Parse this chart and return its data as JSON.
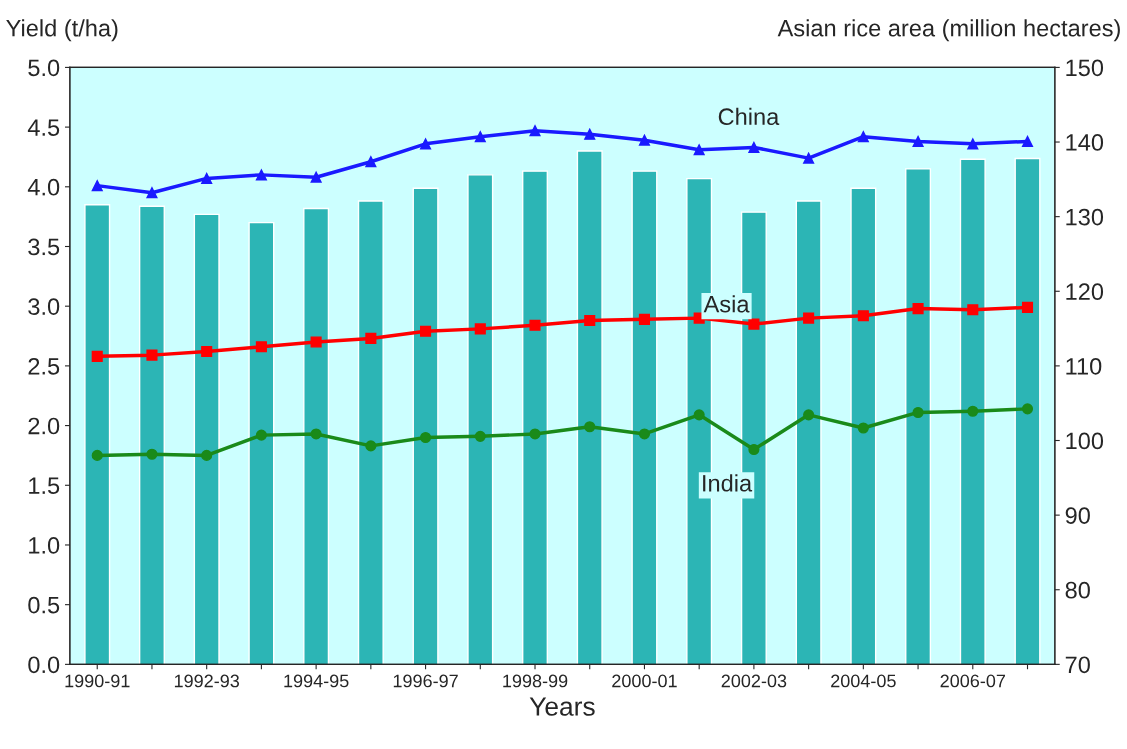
{
  "chart_data": {
    "type": "line",
    "xlabel": "Years",
    "ylabel": "Yield (t/ha)",
    "y2label": "Asian rice area (million hectares)",
    "categories": [
      "1990-91",
      null,
      "1992-93",
      null,
      "1994-95",
      null,
      "1996-97",
      null,
      "1998-99",
      null,
      "2000-01",
      null,
      "2002-03",
      null,
      "2004-05",
      null,
      "2006-07",
      null
    ],
    "series": [
      {
        "type": "bar",
        "axis": "y2",
        "color": "#2cb5b5",
        "values": [
          131.6,
          131.4,
          130.3,
          129.2,
          131.1,
          132.1,
          133.8,
          135.6,
          136.1,
          138.8,
          136.1,
          135.1,
          130.6,
          132.1,
          133.8,
          136.4,
          137.7,
          137.8
        ]
      },
      {
        "name": "China",
        "color": "#1a1aff",
        "marker": "triangle",
        "values": [
          4.01,
          3.95,
          4.07,
          4.1,
          4.08,
          4.21,
          4.36,
          4.42,
          4.47,
          4.44,
          4.39,
          4.31,
          4.33,
          4.24,
          4.42,
          4.38,
          4.36,
          4.38
        ]
      },
      {
        "name": "Asia",
        "color": "#ff0000",
        "marker": "square",
        "values": [
          2.58,
          2.59,
          2.62,
          2.66,
          2.7,
          2.73,
          2.79,
          2.81,
          2.84,
          2.88,
          2.89,
          2.9,
          2.85,
          2.9,
          2.92,
          2.98,
          2.97,
          2.99
        ]
      },
      {
        "name": "India",
        "color": "#1a8a1a",
        "marker": "circle",
        "values": [
          1.75,
          1.76,
          1.75,
          1.92,
          1.93,
          1.83,
          1.9,
          1.91,
          1.93,
          1.99,
          1.93,
          2.09,
          1.8,
          2.09,
          1.98,
          2.11,
          2.12,
          2.14
        ]
      }
    ],
    "ylim": [
      0,
      5
    ],
    "yticks": [
      {
        "value": 0,
        "label": "0.0"
      },
      {
        "value": 0.5,
        "label": "0.5"
      },
      {
        "value": 1,
        "label": "1.0"
      },
      {
        "value": 1.5,
        "label": "1.5"
      },
      {
        "value": 2,
        "label": "2.0"
      },
      {
        "value": 2.5,
        "label": "2.5"
      },
      {
        "value": 3,
        "label": "3.0"
      },
      {
        "value": 3.5,
        "label": "3.5"
      },
      {
        "value": 4,
        "label": "4.0"
      },
      {
        "value": 4.5,
        "label": "4.5"
      },
      {
        "value": 5,
        "label": "5.0"
      }
    ],
    "y2lim": [
      70,
      150
    ],
    "y2ticks": [
      70,
      80,
      90,
      100,
      110,
      120,
      130,
      140,
      150
    ],
    "grid": false,
    "legend": false,
    "line_style": "solid"
  }
}
